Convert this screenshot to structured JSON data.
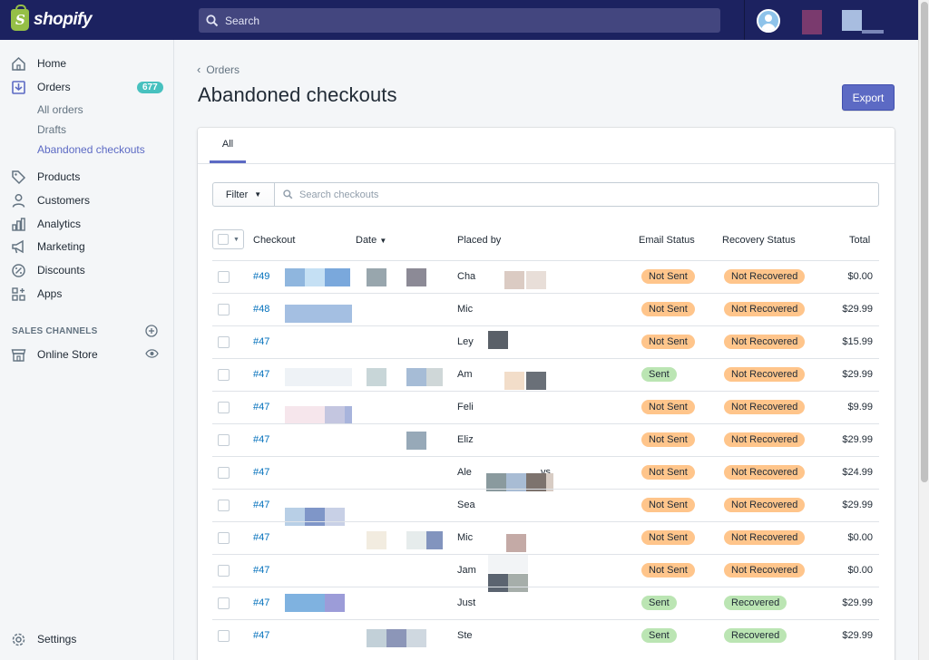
{
  "app": {
    "logo_text": "shopify",
    "search_placeholder": "Search"
  },
  "sidebar": {
    "items": [
      {
        "label": "Home",
        "icon": "home-icon"
      },
      {
        "label": "Orders",
        "icon": "orders-icon",
        "badge": "677"
      },
      {
        "label": "Products",
        "icon": "tag-icon"
      },
      {
        "label": "Customers",
        "icon": "person-icon"
      },
      {
        "label": "Analytics",
        "icon": "bar-chart-icon"
      },
      {
        "label": "Marketing",
        "icon": "megaphone-icon"
      },
      {
        "label": "Discounts",
        "icon": "discount-icon"
      },
      {
        "label": "Apps",
        "icon": "apps-icon"
      }
    ],
    "orders_sub": [
      "All orders",
      "Drafts",
      "Abandoned checkouts"
    ],
    "sales_channels_title": "SALES CHANNELS",
    "online_store": "Online Store",
    "settings": "Settings"
  },
  "main": {
    "breadcrumb": "Orders",
    "title": "Abandoned checkouts",
    "export_label": "Export",
    "tab_all": "All",
    "filter_label": "Filter",
    "search_placeholder": "Search checkouts",
    "columns": [
      "Checkout",
      "Date",
      "Placed by",
      "Email Status",
      "Recovery Status",
      "Total"
    ]
  },
  "rows": [
    {
      "id": "#49",
      "placed_by": "Cha",
      "email_status": "Not Sent",
      "recovery_status": "Not Recovered",
      "total": "$0.00"
    },
    {
      "id": "#48",
      "placed_by": "Mic",
      "email_status": "Not Sent",
      "recovery_status": "Not Recovered",
      "total": "$29.99"
    },
    {
      "id": "#47",
      "placed_by": "Ley",
      "email_status": "Not Sent",
      "recovery_status": "Not Recovered",
      "total": "$15.99"
    },
    {
      "id": "#47",
      "placed_by": "Am",
      "email_status": "Sent",
      "recovery_status": "Not Recovered",
      "total": "$29.99"
    },
    {
      "id": "#47",
      "placed_by": "Feli",
      "email_status": "Not Sent",
      "recovery_status": "Not Recovered",
      "total": "$9.99"
    },
    {
      "id": "#47",
      "placed_by": "Eliz",
      "email_status": "Not Sent",
      "recovery_status": "Not Recovered",
      "total": "$29.99"
    },
    {
      "id": "#47",
      "placed_by": "Ale",
      "placed_by_end": "vs",
      "email_status": "Not Sent",
      "recovery_status": "Not Recovered",
      "total": "$24.99"
    },
    {
      "id": "#47",
      "placed_by": "Sea",
      "email_status": "Not Sent",
      "recovery_status": "Not Recovered",
      "total": "$29.99"
    },
    {
      "id": "#47",
      "placed_by": "Mic",
      "email_status": "Not Sent",
      "recovery_status": "Not Recovered",
      "total": "$0.00"
    },
    {
      "id": "#47",
      "placed_by": "Jam",
      "email_status": "Not Sent",
      "recovery_status": "Not Recovered",
      "total": "$0.00"
    },
    {
      "id": "#47",
      "placed_by": "Just",
      "email_status": "Sent",
      "recovery_status": "Recovered",
      "total": "$29.99"
    },
    {
      "id": "#47",
      "placed_by": "Ste",
      "email_status": "Sent",
      "recovery_status": "Recovered",
      "total": "$29.99"
    }
  ],
  "colors": {
    "topbar": "#1c2260",
    "accent": "#5c6ac4",
    "badge": "#47c1bf",
    "link": "#006fbb",
    "pill_attention": "#ffc58b",
    "pill_success": "#bbe5b3"
  }
}
